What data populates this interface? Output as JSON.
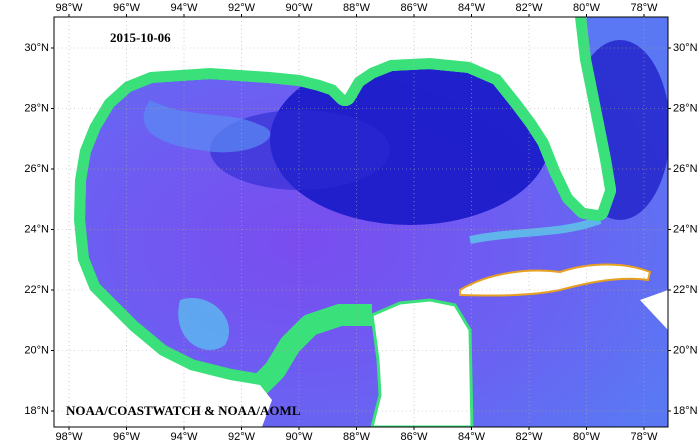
{
  "map": {
    "date": "2015-10-06",
    "credit": "NOAA/COASTWATCH & NOAA/AOML",
    "longitude_labels": [
      "98°W",
      "96°W",
      "94°W",
      "92°W",
      "90°W",
      "88°W",
      "86°W",
      "84°W",
      "82°W",
      "80°W",
      "78°W"
    ],
    "latitude_labels": [
      "30°N",
      "28°N",
      "26°N",
      "24°N",
      "22°N",
      "20°N",
      "18°N"
    ]
  }
}
